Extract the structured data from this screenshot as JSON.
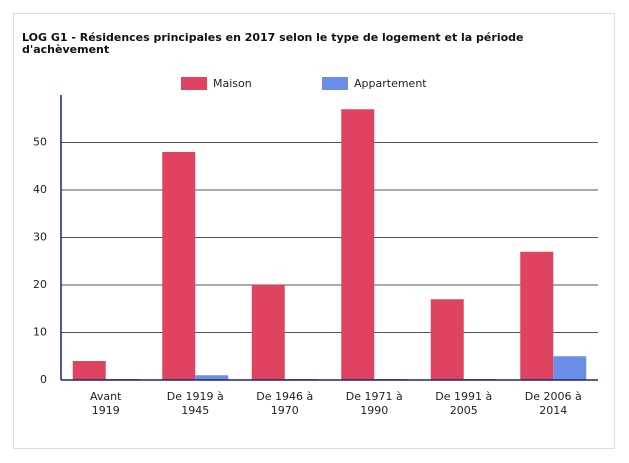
{
  "chart_data": {
    "type": "bar",
    "title": "LOG G1 - Résidences principales en 2017 selon le type de logement et la période d'achèvement",
    "categories": [
      "Avant 1919",
      "De 1919 à 1945",
      "De 1946 à 1970",
      "De 1971 à 1990",
      "De 1991 à 2005",
      "De 2006 à 2014"
    ],
    "series": [
      {
        "name": "Maison",
        "color": "#e0435f",
        "values": [
          4,
          48,
          20,
          57,
          17,
          27
        ]
      },
      {
        "name": "Appartement",
        "color": "#6a8de8",
        "values": [
          0,
          1,
          0,
          0,
          0,
          5
        ]
      }
    ],
    "ylim": [
      0,
      60
    ],
    "yticks": [
      0,
      10,
      20,
      30,
      40,
      50
    ],
    "grid": true,
    "legend": "top"
  }
}
